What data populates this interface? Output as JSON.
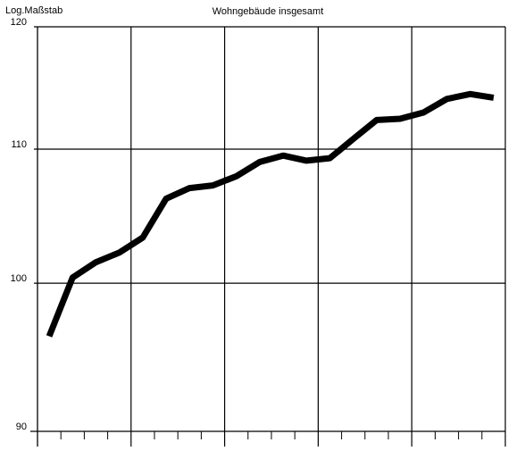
{
  "chart_data": {
    "type": "line",
    "title": "Wohngebäude insgesamt",
    "ylabel": "Log.Maßstab",
    "categories": [
      null,
      null,
      null,
      null,
      null,
      null,
      null,
      null,
      null,
      null,
      null,
      null,
      null,
      null,
      null,
      null,
      null,
      null,
      null,
      null
    ],
    "series": [
      {
        "name": null,
        "color": "#000000",
        "values": [
          96.3,
          100.4,
          101.5,
          102.2,
          103.3,
          106.2,
          107.0,
          107.2,
          107.9,
          109.0,
          109.5,
          109.1,
          109.3,
          110.8,
          112.3,
          112.4,
          112.9,
          114.0,
          114.4,
          114.1
        ]
      }
    ],
    "ylim": [
      90,
      120
    ],
    "yticks": [
      90,
      100,
      110,
      120
    ],
    "log_scale": true,
    "grid": true
  }
}
